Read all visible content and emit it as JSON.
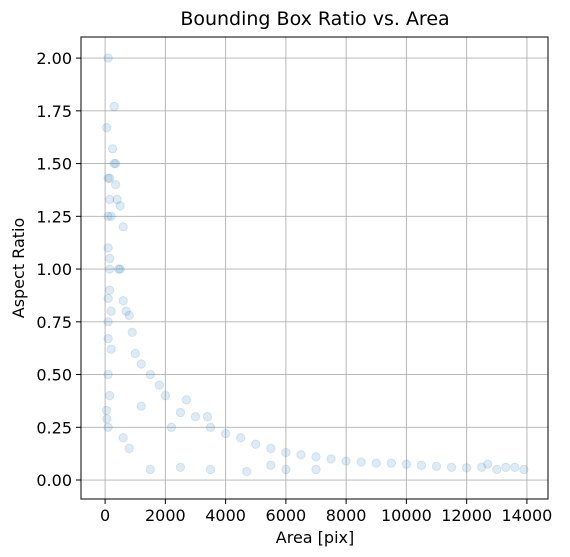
{
  "chart_data": {
    "type": "scatter",
    "title": "Bounding Box Ratio vs. Area",
    "xlabel": "Area [pix]",
    "ylabel": "Aspect Ratio",
    "xlim": [
      -800,
      14700
    ],
    "ylim": [
      -0.09,
      2.1
    ],
    "xticks": [
      0,
      2000,
      4000,
      6000,
      8000,
      10000,
      12000,
      14000
    ],
    "yticks": [
      0.0,
      0.25,
      0.5,
      0.75,
      1.0,
      1.25,
      1.5,
      1.75,
      2.0
    ],
    "xtick_labels": [
      "0",
      "2000",
      "4000",
      "6000",
      "8000",
      "10000",
      "12000",
      "14000"
    ],
    "ytick_labels": [
      "0.00",
      "0.25",
      "0.50",
      "0.75",
      "1.00",
      "1.25",
      "1.50",
      "1.75",
      "2.00"
    ],
    "grid": true,
    "marker_color": "#1f77b4",
    "marker_alpha": 0.15,
    "series": [
      {
        "points": [
          [
            100,
            2.0
          ],
          [
            300,
            1.77
          ],
          [
            50,
            1.67
          ],
          [
            250,
            1.57
          ],
          [
            300,
            1.5
          ],
          [
            350,
            1.5
          ],
          [
            100,
            1.43
          ],
          [
            150,
            1.43
          ],
          [
            350,
            1.4
          ],
          [
            400,
            1.33
          ],
          [
            150,
            1.33
          ],
          [
            500,
            1.3
          ],
          [
            600,
            1.2
          ],
          [
            100,
            1.25
          ],
          [
            200,
            1.25
          ],
          [
            100,
            1.1
          ],
          [
            150,
            1.05
          ],
          [
            150,
            1.0
          ],
          [
            450,
            1.0
          ],
          [
            500,
            1.0
          ],
          [
            150,
            0.9
          ],
          [
            100,
            0.86
          ],
          [
            200,
            0.8
          ],
          [
            600,
            0.85
          ],
          [
            700,
            0.8
          ],
          [
            800,
            0.78
          ],
          [
            100,
            0.75
          ],
          [
            100,
            0.67
          ],
          [
            200,
            0.62
          ],
          [
            900,
            0.7
          ],
          [
            1000,
            0.6
          ],
          [
            1200,
            0.55
          ],
          [
            1500,
            0.5
          ],
          [
            1800,
            0.45
          ],
          [
            100,
            0.5
          ],
          [
            150,
            0.4
          ],
          [
            50,
            0.33
          ],
          [
            60,
            0.29
          ],
          [
            100,
            0.25
          ],
          [
            2000,
            0.4
          ],
          [
            2500,
            0.32
          ],
          [
            2700,
            0.38
          ],
          [
            3000,
            0.3
          ],
          [
            3500,
            0.25
          ],
          [
            4000,
            0.22
          ],
          [
            4500,
            0.2
          ],
          [
            5000,
            0.17
          ],
          [
            5500,
            0.15
          ],
          [
            6000,
            0.13
          ],
          [
            6500,
            0.12
          ],
          [
            7000,
            0.11
          ],
          [
            7500,
            0.1
          ],
          [
            8000,
            0.09
          ],
          [
            8500,
            0.085
          ],
          [
            9000,
            0.08
          ],
          [
            9500,
            0.08
          ],
          [
            10000,
            0.075
          ],
          [
            10500,
            0.07
          ],
          [
            11000,
            0.065
          ],
          [
            11500,
            0.06
          ],
          [
            12000,
            0.058
          ],
          [
            12500,
            0.06
          ],
          [
            12700,
            0.075
          ],
          [
            13000,
            0.05
          ],
          [
            13300,
            0.06
          ],
          [
            13600,
            0.06
          ],
          [
            13900,
            0.05
          ],
          [
            1500,
            0.05
          ],
          [
            2500,
            0.06
          ],
          [
            3500,
            0.05
          ],
          [
            3400,
            0.3
          ],
          [
            2200,
            0.25
          ],
          [
            1200,
            0.35
          ],
          [
            5500,
            0.07
          ],
          [
            4700,
            0.04
          ],
          [
            6000,
            0.05
          ],
          [
            7000,
            0.05
          ],
          [
            800,
            0.15
          ],
          [
            600,
            0.2
          ]
        ]
      }
    ]
  }
}
